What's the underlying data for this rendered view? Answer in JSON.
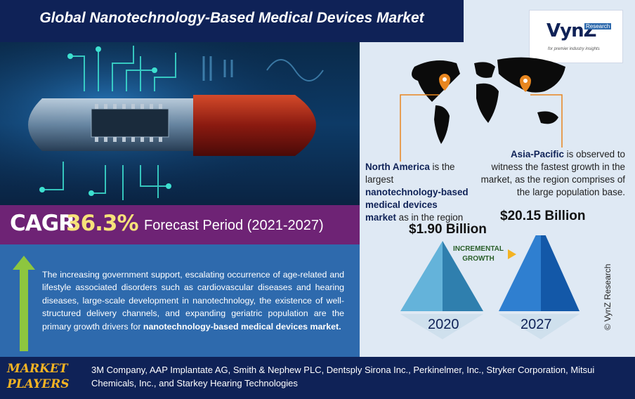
{
  "header": {
    "title": "Global Nanotechnology-Based Medical Devices Market"
  },
  "logo": {
    "brand": "VynZ",
    "sub": "Research",
    "tagline": "for premier industry insights"
  },
  "cagr": {
    "label": "CAGR",
    "value": "36.3%",
    "forecast": "Forecast Period (2021-2027)"
  },
  "drivers": {
    "text": "The increasing government support, escalating occurrence of age-related and lifestyle associated disorders such as cardiovascular diseases and hearing diseases, large-scale development in nanotechnology, the existence of well-structured delivery channels, and expanding geriatric population are the primary growth drivers for ",
    "bold": "nanotechnology-based medical devices market.",
    "arrow_color": "#8dc63f"
  },
  "regions": {
    "north_america": {
      "name": "North America",
      "t1": " is the largest ",
      "bold": "nanotechnology-based medical devices market",
      "t2": " as in the region"
    },
    "asia_pacific": {
      "name": "Asia-Pacific",
      "t1": " is observed to witness the fastest growth in the market, as the region comprises of the large population base."
    }
  },
  "market_values": {
    "v2020": "$1.90 Billion",
    "v2027": "$20.15 Billion",
    "year2020": "2020",
    "year2027": "2027",
    "incremental_line1": "INCREMENTAL",
    "incremental_line2": "GROWTH"
  },
  "players": {
    "label_line1": "MARKET",
    "label_line2": "PLAYERS",
    "text": "3M Company, AAP Implantate AG, Smith & Nephew PLC, Dentsply Sirona Inc., Perkinelmer, Inc., Stryker Corporation, Mitsui Chemicals, Inc., and Starkey Hearing Technologies"
  },
  "copyright": "© VynZ Research",
  "colors": {
    "navy": "#0f2257",
    "purple": "#6e2375",
    "blue_panel": "#2e6aad",
    "gold": "#f3b323",
    "orange_pin": "#e8861f"
  }
}
